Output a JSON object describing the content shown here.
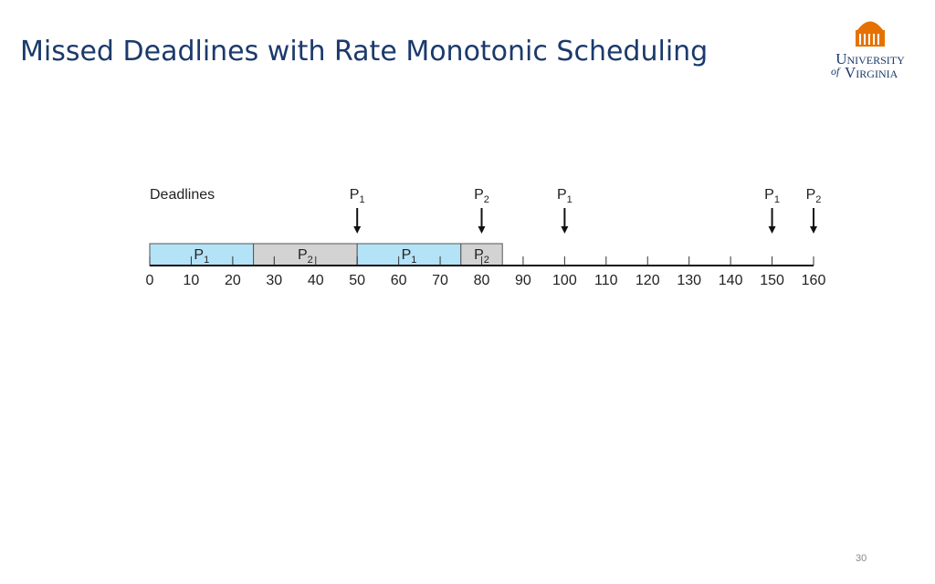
{
  "header": {
    "title": "Missed Deadlines with Rate Monotonic Scheduling",
    "logo": {
      "line1": "University",
      "of": "of",
      "line2": "Virginia"
    }
  },
  "chart_data": {
    "type": "timeline",
    "title": "Deadlines",
    "xlim": [
      0,
      160
    ],
    "xticks": [
      0,
      10,
      20,
      30,
      40,
      50,
      60,
      70,
      80,
      90,
      100,
      110,
      120,
      130,
      140,
      150,
      160
    ],
    "segments": [
      {
        "name": "P",
        "index": "1",
        "start": 0,
        "end": 25,
        "color": "#b4e2f6"
      },
      {
        "name": "P",
        "index": "2",
        "start": 25,
        "end": 50,
        "color": "#d3d3d3"
      },
      {
        "name": "P",
        "index": "1",
        "start": 50,
        "end": 75,
        "color": "#b4e2f6"
      },
      {
        "name": "P",
        "index": "2",
        "start": 75,
        "end": 85,
        "color": "#d3d3d3"
      }
    ],
    "deadlines": [
      {
        "name": "P",
        "index": "1",
        "x": 50
      },
      {
        "name": "P",
        "index": "2",
        "x": 80
      },
      {
        "name": "P",
        "index": "1",
        "x": 100
      },
      {
        "name": "P",
        "index": "1",
        "x": 150
      },
      {
        "name": "P",
        "index": "2",
        "x": 160
      }
    ]
  },
  "footer": {
    "page": "30"
  }
}
